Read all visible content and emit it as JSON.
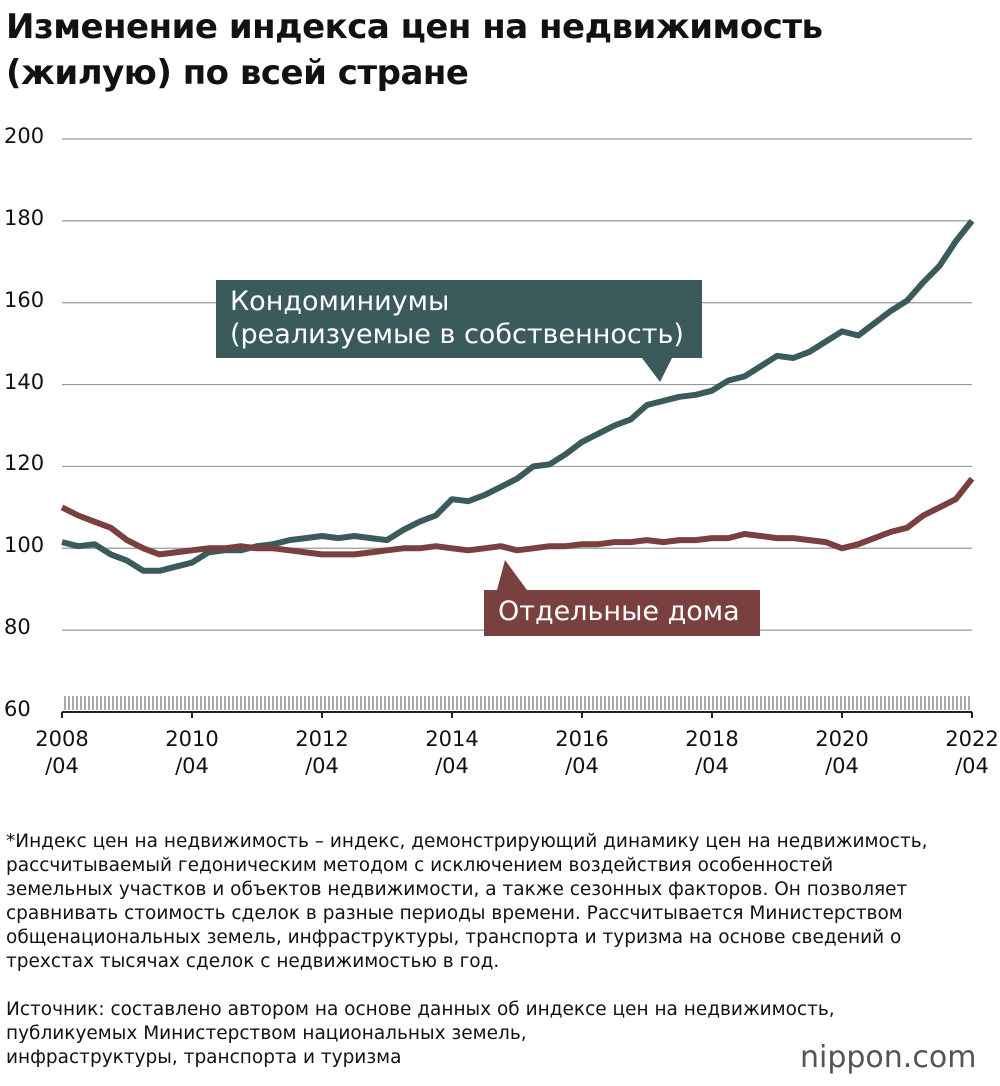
{
  "chart_data": {
    "type": "line",
    "title": "Изменение индекса цен на недвижимость\n(жилую) по всей стране",
    "x": [
      "2008/04",
      "2008/07",
      "2008/10",
      "2009/01",
      "2009/04",
      "2009/07",
      "2009/10",
      "2010/01",
      "2010/04",
      "2010/07",
      "2010/10",
      "2011/01",
      "2011/04",
      "2011/07",
      "2011/10",
      "2012/01",
      "2012/04",
      "2012/07",
      "2012/10",
      "2013/01",
      "2013/04",
      "2013/07",
      "2013/10",
      "2014/01",
      "2014/04",
      "2014/07",
      "2014/10",
      "2015/01",
      "2015/04",
      "2015/07",
      "2015/10",
      "2016/01",
      "2016/04",
      "2016/07",
      "2016/10",
      "2017/01",
      "2017/04",
      "2017/07",
      "2017/10",
      "2018/01",
      "2018/04",
      "2018/07",
      "2018/10",
      "2019/01",
      "2019/04",
      "2019/07",
      "2019/10",
      "2020/01",
      "2020/04",
      "2020/07",
      "2020/10",
      "2021/01",
      "2021/04",
      "2021/07",
      "2021/10",
      "2022/01",
      "2022/04"
    ],
    "series": [
      {
        "name": "Кондоминиумы\n(реализуемые в собственность)",
        "color": "#3b5a5c",
        "values": [
          101.5,
          100.5,
          101,
          98.5,
          97,
          94.5,
          94.5,
          95.5,
          96.5,
          99,
          99.5,
          99.5,
          100.5,
          101,
          102,
          102.5,
          103,
          102.5,
          103,
          102.5,
          102,
          104.5,
          106.5,
          108,
          112,
          111.5,
          113,
          115,
          117,
          120,
          120.5,
          123,
          126,
          128,
          130,
          131.5,
          135,
          136,
          137,
          137.5,
          138.5,
          141,
          142,
          144.5,
          147,
          146.5,
          148,
          150.5,
          153,
          152,
          155,
          158,
          160.5,
          165,
          169,
          175,
          180
        ]
      },
      {
        "name": "Отдельные дома",
        "color": "#7a3f3f",
        "values": [
          110,
          108,
          106.5,
          105,
          102,
          100,
          98.5,
          99,
          99.5,
          100,
          100,
          100.5,
          100,
          100,
          99.5,
          99,
          98.5,
          98.5,
          98.5,
          99,
          99.5,
          100,
          100,
          100.5,
          100,
          99.5,
          100,
          100.5,
          99.5,
          100,
          100.5,
          100.5,
          101,
          101,
          101.5,
          101.5,
          102,
          101.5,
          102,
          102,
          102.5,
          102.5,
          103.5,
          103,
          102.5,
          102.5,
          102,
          101.5,
          100,
          101,
          102.5,
          104,
          105,
          108,
          110,
          112,
          117
        ]
      }
    ],
    "xlim": [
      "2008/04",
      "2022/04"
    ],
    "xticks": [
      {
        "value": "2008/04",
        "label": "2008\n/04"
      },
      {
        "value": "2010/04",
        "label": "2010\n/04"
      },
      {
        "value": "2012/04",
        "label": "2012\n/04"
      },
      {
        "value": "2014/04",
        "label": "2014\n/04"
      },
      {
        "value": "2016/04",
        "label": "2016\n/04"
      },
      {
        "value": "2018/04",
        "label": "2018\n/04"
      },
      {
        "value": "2020/04",
        "label": "2020\n/04"
      },
      {
        "value": "2022/04",
        "label": "2022\n/04"
      }
    ],
    "ylim": [
      60,
      200
    ],
    "yticks": [
      60,
      80,
      100,
      120,
      140,
      160,
      180,
      200
    ],
    "grid": true,
    "note": "*Индекс цен на недвижимость – индекс, демонстрирующий динамику цен на недвижимость,\nрассчитываемый гедоническим методом с исключением воздействия особенностей\nземельных участков и объектов недвижимости, а также сезонных факторов. Он позволяет\nсравнивать стоимость сделок в разные периоды времени. Рассчитывается Министерством\nобщенациональных земель, инфраструктуры, транспорта и туризма на основе сведений о\nтрехстах тысячах сделок с недвижимостью в год.",
    "source": "Источник: составлено автором на основе данных об индексе цен на недвижимость,\nпубликуемых Министерством национальных земель,\nинфраструктуры, транспорта и туризма",
    "brand": "nippon.com"
  }
}
